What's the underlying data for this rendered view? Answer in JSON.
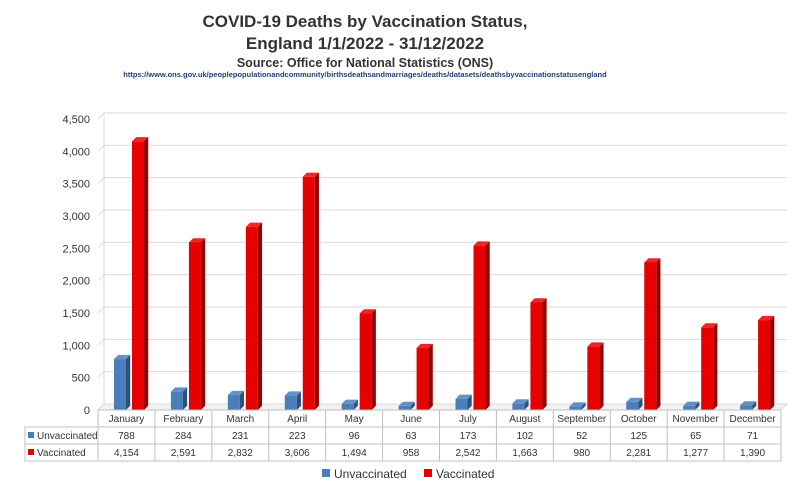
{
  "chart_data": {
    "type": "bar",
    "title": "COVID-19 Deaths by Vaccination Status,",
    "title_line2": "England 1/1/2022 - 31/12/2022",
    "subtitle": "Source: Office for National Statistics (ONS)",
    "source_url": "https://www.ons.gov.uk/peoplepopulationandcommunity/birthsdeathsandmarriages/deaths/datasets/deathsbyvaccinationstatusengland",
    "categories": [
      "January",
      "February",
      "March",
      "April",
      "May",
      "June",
      "July",
      "August",
      "September",
      "October",
      "November",
      "December"
    ],
    "series": [
      {
        "name": "Unvaccinated",
        "color": "#4a7ebb",
        "values": [
          788,
          284,
          231,
          223,
          96,
          63,
          173,
          102,
          52,
          125,
          65,
          71
        ],
        "labels": [
          "788",
          "284",
          "231",
          "223",
          "96",
          "63",
          "173",
          "102",
          "52",
          "125",
          "65",
          "71"
        ]
      },
      {
        "name": "Vaccinated",
        "color": "#e60000",
        "values": [
          4154,
          2591,
          2832,
          3606,
          1494,
          958,
          2542,
          1663,
          980,
          2281,
          1277,
          1390
        ],
        "labels": [
          "4,154",
          "2,591",
          "2,832",
          "3,606",
          "1,494",
          "958",
          "2,542",
          "1,663",
          "980",
          "2,281",
          "1,277",
          "1,390"
        ]
      }
    ],
    "ylim": [
      0,
      4500
    ],
    "yticks": [
      0,
      500,
      1000,
      1500,
      2000,
      2500,
      3000,
      3500,
      4000,
      4500
    ],
    "ytick_labels": [
      "0",
      "500",
      "1,000",
      "1,500",
      "2,000",
      "2,500",
      "3,000",
      "3,500",
      "4,000",
      "4,500"
    ],
    "xlabel": "",
    "ylabel": "",
    "grid": true,
    "legend_position": "bottom",
    "data_table": true
  }
}
